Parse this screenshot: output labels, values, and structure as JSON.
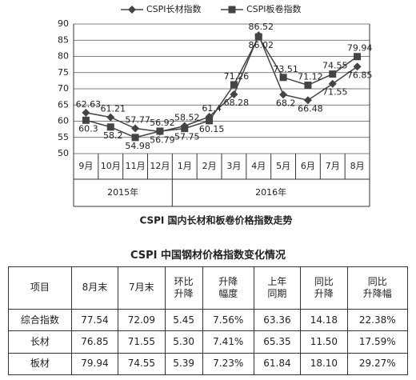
{
  "chart_data": {
    "type": "line",
    "legend_position": "top",
    "title": "CSPI 国内长材和板卷价格指数走势",
    "categories": [
      "9月",
      "10月",
      "11月",
      "12月",
      "1月",
      "2月",
      "3月",
      "4月",
      "5月",
      "6月",
      "7月",
      "8月"
    ],
    "x_groups": [
      "2015年",
      "2016年"
    ],
    "series": [
      {
        "name": "CSPI长材指数",
        "color": "#444444",
        "marker": "diamond",
        "values": [
          62.63,
          61.21,
          57.77,
          56.79,
          58.52,
          61.4,
          68.28,
          86.52,
          68.2,
          66.48,
          71.55,
          76.85
        ]
      },
      {
        "name": "CSPI板卷指数",
        "color": "#444444",
        "marker": "square",
        "values": [
          60.3,
          58.2,
          54.98,
          56.92,
          57.75,
          60.15,
          71.26,
          86.02,
          73.51,
          71.12,
          74.55,
          79.94
        ]
      }
    ],
    "ylim": [
      50,
      90
    ],
    "yticks": [
      50,
      55,
      60,
      65,
      70,
      75,
      80,
      85,
      90
    ],
    "grid": true
  },
  "table": {
    "title": "CSPI 中国钢材价格指数变化情况",
    "header": [
      "项目",
      "8月末",
      "7月末",
      "环比\n升降",
      "升降\n幅度",
      "上年\n同期",
      "同比\n升降",
      "同比\n升降幅"
    ],
    "rows": [
      [
        "综合指数",
        "77.54",
        "72.09",
        "5.45",
        "7.56%",
        "63.36",
        "14.18",
        "22.38%"
      ],
      [
        "长材",
        "76.85",
        "71.55",
        "5.30",
        "7.41%",
        "65.35",
        "11.50",
        "17.59%"
      ],
      [
        "板材",
        "79.94",
        "74.55",
        "5.39",
        "7.23%",
        "61.84",
        "18.10",
        "29.27%"
      ]
    ]
  }
}
